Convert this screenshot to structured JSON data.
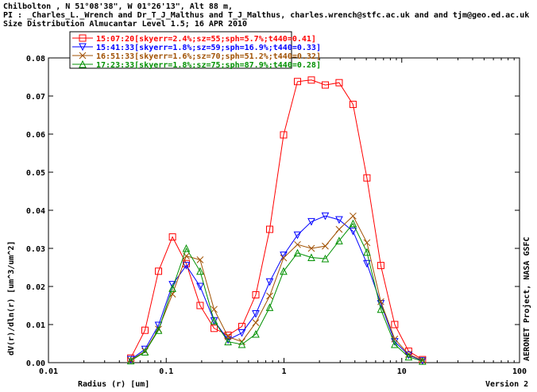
{
  "header": {
    "line1": "Chilbolton , N 51°08'38\", W 01°26'13\", Alt 88 m,",
    "line2": "PI : _Charles_L._Wrench and Dr_T_J_Malthus and T_J_Malthus, charles.wrench@stfc.ac.uk and  and tjm@geo.ed.ac.uk",
    "line3": "Size Distribution Almucantar Level 1.5; 16 APR 2010"
  },
  "side_label": "AERONET Project, NASA GSFC",
  "version_label": "Version 2",
  "chart_data": {
    "type": "line",
    "xscale": "log",
    "xlim": [
      0.01,
      100
    ],
    "ylim": [
      0,
      0.08
    ],
    "xlabel": "Radius (r) [um]",
    "ylabel": "dV(r)/dln(r) [um^3/um^2]",
    "xticks": [
      "0.01",
      "0.1",
      "1",
      "10",
      "100"
    ],
    "yticks": [
      "0.00",
      "0.01",
      "0.02",
      "0.03",
      "0.04",
      "0.05",
      "0.06",
      "0.07",
      "0.08"
    ],
    "grid": false,
    "legend_position": "top-left",
    "x": [
      0.05,
      0.066,
      0.086,
      0.113,
      0.148,
      0.194,
      0.255,
      0.335,
      0.439,
      0.576,
      0.756,
      0.992,
      1.302,
      1.708,
      2.241,
      2.94,
      3.857,
      5.061,
      6.641,
      8.713,
      11.432,
      15.0
    ],
    "series": [
      {
        "name": "15:07:20[skyerr=2.4%;sz=55;sph=5.7%;t440=0.41]",
        "color": "#ff0000",
        "marker": "square",
        "values": [
          0.0012,
          0.0085,
          0.024,
          0.033,
          0.026,
          0.015,
          0.009,
          0.0072,
          0.0095,
          0.0178,
          0.035,
          0.0598,
          0.0738,
          0.0742,
          0.0729,
          0.0735,
          0.0678,
          0.0485,
          0.0255,
          0.01,
          0.003,
          0.0008
        ]
      },
      {
        "name": "15:41:33[skyerr=1.8%;sz=59;sph=16.9%;t440=0.33]",
        "color": "#0000ff",
        "marker": "triangle-down",
        "values": [
          0.0008,
          0.0035,
          0.0098,
          0.0205,
          0.0255,
          0.02,
          0.011,
          0.006,
          0.0078,
          0.0128,
          0.0212,
          0.0282,
          0.0335,
          0.037,
          0.0385,
          0.0375,
          0.0345,
          0.026,
          0.0155,
          0.0055,
          0.002,
          0.0005
        ]
      },
      {
        "name": "16:51:33[skyerr=1.6%;sz=70;sph=51.2%;t440=0.32]",
        "color": "#a05000",
        "marker": "x",
        "values": [
          0.0006,
          0.003,
          0.0088,
          0.018,
          0.028,
          0.027,
          0.014,
          0.0068,
          0.0055,
          0.0105,
          0.0175,
          0.0275,
          0.031,
          0.03,
          0.0306,
          0.035,
          0.0385,
          0.0315,
          0.016,
          0.0062,
          0.0022,
          0.0006
        ]
      },
      {
        "name": "17:23:33[skyerr=1.8%;sz=75;sph=87.9%;t440=0.28]",
        "color": "#009000",
        "marker": "triangle-up",
        "values": [
          0.0005,
          0.0028,
          0.0085,
          0.0195,
          0.03,
          0.024,
          0.011,
          0.0055,
          0.0048,
          0.0075,
          0.0145,
          0.024,
          0.0288,
          0.0276,
          0.0273,
          0.032,
          0.0365,
          0.029,
          0.014,
          0.0048,
          0.0015,
          0.0004
        ]
      }
    ]
  }
}
